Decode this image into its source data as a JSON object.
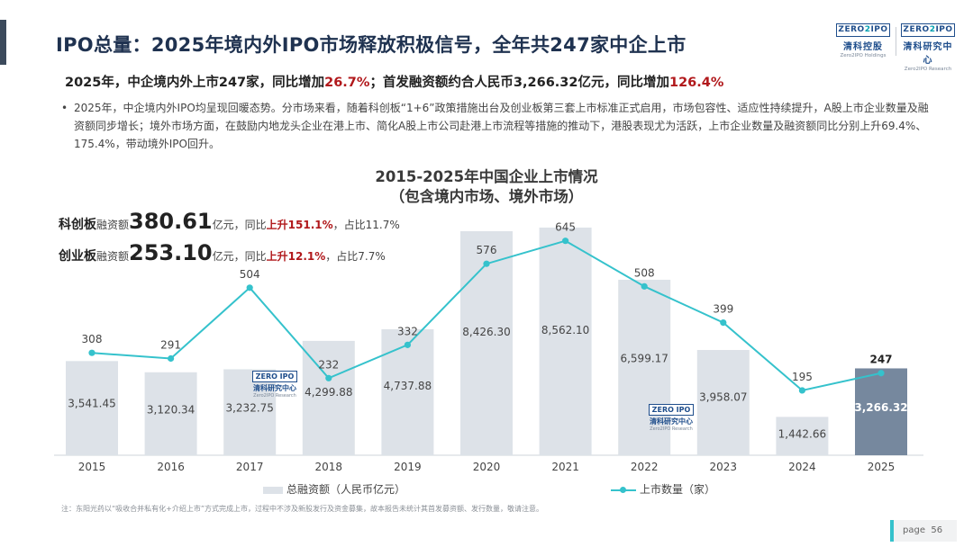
{
  "header": {
    "title": "IPO总量：2025年境内外IPO市场释放积极信号，全年共247家中企上市",
    "logo_left": {
      "mark": "ZERO",
      "mark2": "IPO",
      "cn": "清科控股",
      "en": "Zero2IPO Holdings"
    },
    "logo_right": {
      "mark": "ZERO",
      "mark2": "IPO",
      "cn": "清科研究中心",
      "en": "Zero2IPO Research"
    }
  },
  "headline": {
    "part1": "2025年，中企境内外上市247家，同比增加",
    "pct1": "26.7%",
    "part2": "；首发融资额约合人民币3,266.32亿元，同比增加",
    "pct2": "126.4%"
  },
  "bullet": {
    "dot": "•",
    "text": "2025年，中企境内外IPO均呈现回暖态势。分市场来看，随着科创板“1+6”政策措施出台及创业板第三套上市标准正式启用，市场包容性、适应性持续提升，A股上市企业数量及融资额同步增长；境外市场方面，在鼓励内地龙头企业在港上市、简化A股上市公司赴港上市流程等措施的推动下，港股表现尤为活跃，上市企业数量及融资额同比分别上升69.4%、175.4%，带动境外IPO回升。"
  },
  "boards": {
    "star": {
      "name": "科创板",
      "label": "融资额",
      "value": "380.61",
      "unit": "亿元，同比",
      "up": "上升151.1%",
      "share": "，占比11.7%"
    },
    "gem": {
      "name": "创业板",
      "label": "融资额",
      "value": "253.10",
      "unit": "亿元，同比",
      "up": "上升12.1%",
      "share": "，占比7.7%"
    }
  },
  "watermark": {
    "mark": "ZERO IPO",
    "cn": "清科研究中心",
    "en": "Zero2IPO Research"
  },
  "chart_data": {
    "type": "bar",
    "title": "2015-2025年中国企业上市情况",
    "subtitle": "（包含境内市场、境外市场）",
    "categories": [
      "2015",
      "2016",
      "2017",
      "2018",
      "2019",
      "2020",
      "2021",
      "2022",
      "2023",
      "2024",
      "2025"
    ],
    "series": [
      {
        "name": "总融资额（人民币亿元）",
        "kind": "bar",
        "values": [
          3541.45,
          3120.34,
          3232.75,
          4299.88,
          4737.88,
          8426.3,
          8562.1,
          6599.17,
          3958.07,
          1442.66,
          3266.32
        ],
        "labels": [
          "3,541.45",
          "3,120.34",
          "3,232.75",
          "4,299.88",
          "4,737.88",
          "8,426.30",
          "8,562.10",
          "6,599.17",
          "3,958.07",
          "1,442.66",
          "3,266.32"
        ]
      },
      {
        "name": "上市数量（家）",
        "kind": "line",
        "values": [
          308,
          291,
          504,
          232,
          332,
          576,
          645,
          508,
          399,
          195,
          247
        ]
      }
    ],
    "bar_max": 9000,
    "line_max": 720,
    "highlight_index": 10,
    "colors": {
      "bar": "#dde2e8",
      "bar_highlight": "#76889e",
      "line": "#35c2cc"
    }
  },
  "note": "注：东阳光药以“吸收合并私有化+介绍上市”方式完成上市，过程中不涉及新股发行及资金募集，故本报告未统计其首发募资额、发行数量，敬请注意。",
  "page": {
    "label": "page",
    "number": "56"
  }
}
